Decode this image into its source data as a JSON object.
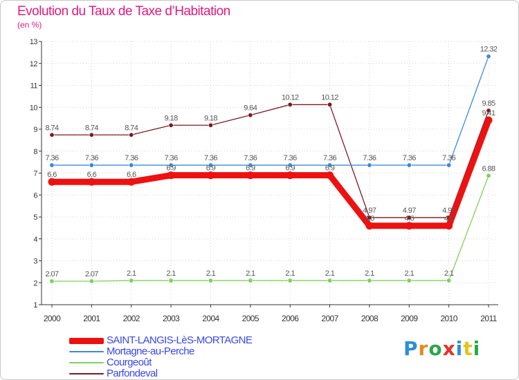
{
  "title": "Evolution du Taux de Taxe d’Habitation",
  "unit": "(en %)",
  "brand": "Proxiti",
  "brand_letters": [
    {
      "ch": "P",
      "color": "#2a8fd8"
    },
    {
      "ch": "r",
      "color": "#e88a1a"
    },
    {
      "ch": "o",
      "color": "#2aa84a"
    },
    {
      "ch": "x",
      "color": "#e8302a"
    },
    {
      "ch": "i",
      "color": "#2a8fd8"
    },
    {
      "ch": "t",
      "color": "#e8c21a"
    },
    {
      "ch": "i",
      "color": "#2aa84a"
    }
  ],
  "chart_data": {
    "type": "line",
    "title": "Evolution du Taux de Taxe d’Habitation",
    "ylabel": "(en %)",
    "xlabel": "",
    "ylim": [
      1,
      13
    ],
    "yticks": [
      1,
      2,
      3,
      4,
      5,
      6,
      7,
      8,
      9,
      10,
      11,
      12,
      13
    ],
    "categories": [
      "2000",
      "2001",
      "2002",
      "2003",
      "2004",
      "2005",
      "2006",
      "2007",
      "2008",
      "2009",
      "2010",
      "2011"
    ],
    "series": [
      {
        "name": "Parfondeval",
        "color": "#7a1a22",
        "values": [
          8.74,
          8.74,
          8.74,
          9.18,
          9.18,
          9.64,
          10.12,
          10.12,
          4.97,
          4.97,
          4.97,
          9.85
        ],
        "labels": [
          "8.74",
          "8.74",
          "8.74",
          "9.18",
          "9.18",
          "9.64",
          "10.12",
          "10.12",
          "4.97",
          "4.97",
          "4.97",
          "9.85"
        ]
      },
      {
        "name": "Mortagne-au-Perche",
        "color": "#3a8ad8",
        "values": [
          7.36,
          7.36,
          7.36,
          7.36,
          7.36,
          7.36,
          7.36,
          7.36,
          7.36,
          7.36,
          7.36,
          12.32
        ],
        "labels": [
          "7.36",
          "7.36",
          "7.36",
          "7.36",
          "7.36",
          "7.36",
          "7.36",
          "7.36",
          "7.36",
          "7.36",
          "7.36",
          "12.32"
        ]
      },
      {
        "name": "Courgeoût",
        "color": "#7ed05a",
        "values": [
          2.07,
          2.07,
          2.1,
          2.1,
          2.1,
          2.1,
          2.1,
          2.1,
          2.1,
          2.1,
          2.1,
          6.88
        ],
        "labels": [
          "2.07",
          "2.07",
          "2.1",
          "2.1",
          "2.1",
          "2.1",
          "2.1",
          "2.1",
          "2.1",
          "2.1",
          "2.1",
          "6.88"
        ]
      },
      {
        "name": "SAINT-LANGIS-LèS-MORTAGNE",
        "color": "#ee1111",
        "values": [
          6.6,
          6.6,
          6.6,
          6.9,
          6.9,
          6.9,
          6.9,
          6.9,
          4.6,
          4.6,
          4.6,
          9.41
        ],
        "labels": [
          "6.6",
          "6.6",
          "6.6",
          "6.9",
          "6.9",
          "6.9",
          "6.9",
          "6.9",
          "4.6",
          "4.6",
          "4.6",
          "9.41"
        ]
      }
    ],
    "legend": [
      {
        "name": "SAINT-LANGIS-LèS-MORTAGNE",
        "color": "#ee1111"
      },
      {
        "name": "Mortagne-au-Perche",
        "color": "#3a8ad8"
      },
      {
        "name": "Courgeoût",
        "color": "#7ed05a"
      },
      {
        "name": "Parfondeval",
        "color": "#7a1a22"
      }
    ]
  }
}
